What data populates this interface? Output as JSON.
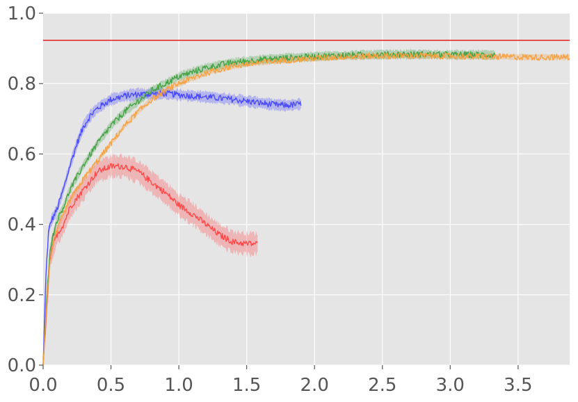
{
  "chart_data": {
    "type": "line",
    "title": "",
    "xlabel": "",
    "ylabel": "",
    "xlim": [
      0.0,
      3.88
    ],
    "ylim": [
      0.0,
      1.0
    ],
    "grid": true,
    "background": "#e5e5e5",
    "x_ticks": [
      0.0,
      0.5,
      1.0,
      1.5,
      2.0,
      2.5,
      3.0,
      3.5
    ],
    "x_tick_labels": [
      "0.0",
      "0.5",
      "1.0",
      "1.5",
      "2.0",
      "2.5",
      "3.0",
      "3.5"
    ],
    "y_ticks": [
      0.0,
      0.2,
      0.4,
      0.6,
      0.8,
      1.0
    ],
    "y_tick_labels": [
      "0.0",
      "0.2",
      "0.4",
      "0.6",
      "0.8",
      "1.0"
    ],
    "reference_line": {
      "y": 0.923,
      "color": "#e31a1c"
    },
    "series": [
      {
        "color": "#4444ff",
        "band": 0.015,
        "x": [
          0.0,
          0.02,
          0.04,
          0.06,
          0.1,
          0.15,
          0.2,
          0.25,
          0.3,
          0.35,
          0.4,
          0.5,
          0.6,
          0.7,
          0.8,
          0.9,
          1.0,
          1.2,
          1.4,
          1.6,
          1.7,
          1.8,
          1.9
        ],
        "y": [
          0.0,
          0.25,
          0.38,
          0.41,
          0.44,
          0.5,
          0.57,
          0.63,
          0.68,
          0.71,
          0.73,
          0.755,
          0.765,
          0.77,
          0.77,
          0.772,
          0.768,
          0.762,
          0.755,
          0.745,
          0.74,
          0.738,
          0.742
        ]
      },
      {
        "color": "#ff4444",
        "band": 0.03,
        "x": [
          0.0,
          0.02,
          0.05,
          0.08,
          0.1,
          0.15,
          0.2,
          0.3,
          0.4,
          0.5,
          0.6,
          0.7,
          0.8,
          0.9,
          1.0,
          1.1,
          1.2,
          1.3,
          1.4,
          1.5,
          1.58
        ],
        "y": [
          0.0,
          0.12,
          0.3,
          0.35,
          0.37,
          0.4,
          0.45,
          0.5,
          0.55,
          0.565,
          0.565,
          0.55,
          0.52,
          0.49,
          0.455,
          0.43,
          0.4,
          0.37,
          0.35,
          0.345,
          0.345
        ]
      },
      {
        "color": "#40a040",
        "band": 0.012,
        "x": [
          0.0,
          0.02,
          0.05,
          0.1,
          0.15,
          0.2,
          0.3,
          0.4,
          0.5,
          0.6,
          0.7,
          0.8,
          0.9,
          1.0,
          1.2,
          1.4,
          1.6,
          1.8,
          2.0,
          2.2,
          2.4,
          2.6,
          2.8,
          3.0,
          3.2,
          3.33
        ],
        "y": [
          0.0,
          0.15,
          0.33,
          0.41,
          0.45,
          0.5,
          0.57,
          0.63,
          0.68,
          0.72,
          0.75,
          0.78,
          0.8,
          0.82,
          0.845,
          0.86,
          0.868,
          0.873,
          0.877,
          0.88,
          0.882,
          0.883,
          0.883,
          0.882,
          0.882,
          0.881
        ]
      },
      {
        "color": "#f5a040",
        "band": 0.008,
        "x": [
          0.0,
          0.02,
          0.05,
          0.1,
          0.15,
          0.2,
          0.3,
          0.4,
          0.5,
          0.6,
          0.7,
          0.8,
          0.9,
          1.0,
          1.2,
          1.4,
          1.6,
          1.8,
          2.0,
          2.2,
          2.4,
          2.6,
          2.8,
          3.0,
          3.2,
          3.4,
          3.6,
          3.88
        ],
        "y": [
          0.0,
          0.14,
          0.3,
          0.38,
          0.43,
          0.47,
          0.53,
          0.58,
          0.63,
          0.68,
          0.72,
          0.755,
          0.78,
          0.8,
          0.83,
          0.85,
          0.86,
          0.867,
          0.872,
          0.876,
          0.878,
          0.879,
          0.879,
          0.878,
          0.877,
          0.876,
          0.875,
          0.875
        ]
      }
    ]
  }
}
